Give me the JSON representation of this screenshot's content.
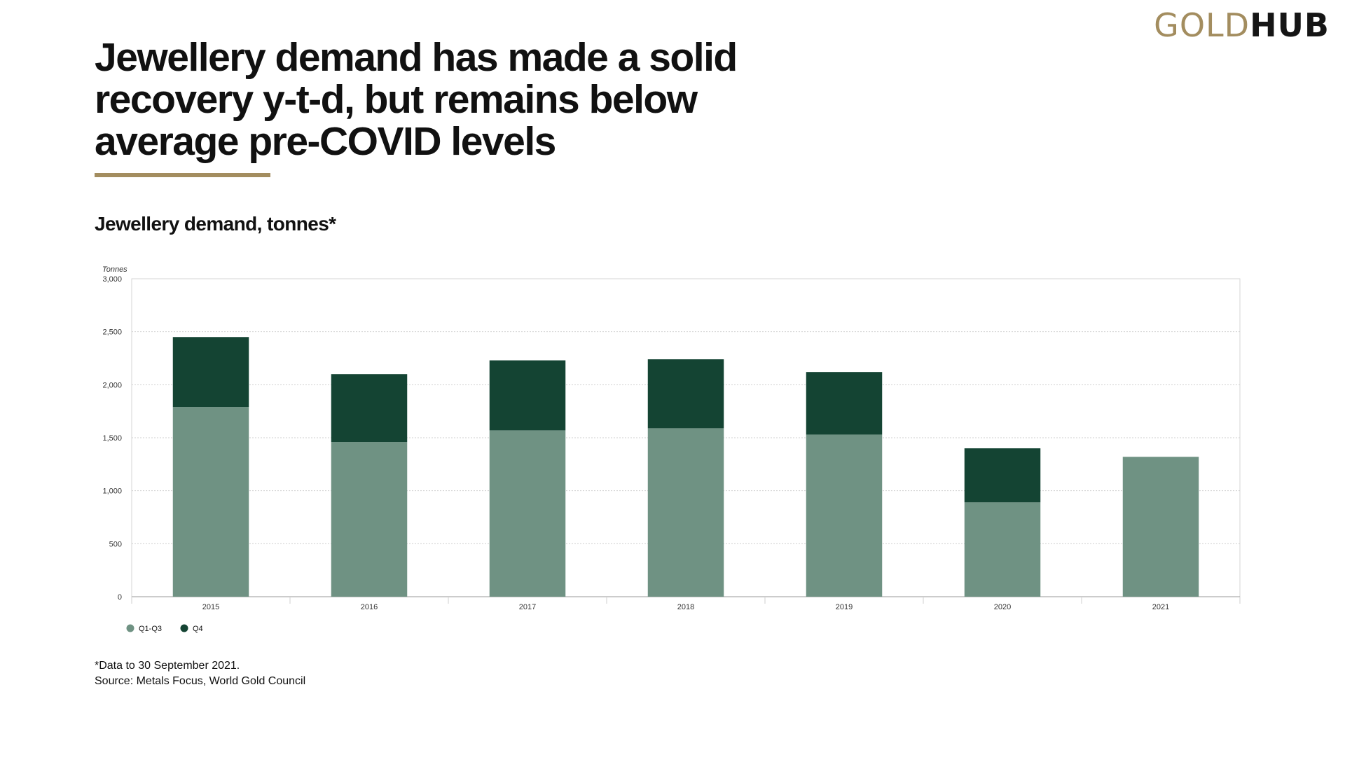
{
  "logo": {
    "gold_text": "GOLD",
    "hub_text": "HUB"
  },
  "headline": "Jewellery demand has made a solid\nrecovery y-t-d, but remains below\naverage pre-COVID levels",
  "colors": {
    "gold": "#a38d5f",
    "q1q3": "#6f9283",
    "q4": "#144433"
  },
  "chart_data": {
    "type": "bar",
    "stacked": true,
    "title": "Jewellery demand, tonnes*",
    "ylabel": "Tonnes",
    "xlabel": "",
    "ylim": [
      0,
      3000
    ],
    "yticks": [
      0,
      500,
      1000,
      1500,
      2000,
      2500,
      3000
    ],
    "ytick_labels": [
      "0",
      "500",
      "1,000",
      "1,500",
      "2,000",
      "2,500",
      "3,000"
    ],
    "categories": [
      "2015",
      "2016",
      "2017",
      "2018",
      "2019",
      "2020",
      "2021"
    ],
    "series": [
      {
        "name": "Q1-Q3",
        "color": "#6f9283",
        "values": [
          1790,
          1460,
          1570,
          1590,
          1530,
          890,
          1320
        ]
      },
      {
        "name": "Q4",
        "color": "#144433",
        "values": [
          660,
          640,
          660,
          650,
          590,
          510,
          0
        ]
      }
    ],
    "grid": true,
    "legend_position": "bottom-left"
  },
  "footnote": {
    "note": "*Data to 30 September 2021.",
    "source": "Source: Metals Focus, World Gold Council"
  }
}
